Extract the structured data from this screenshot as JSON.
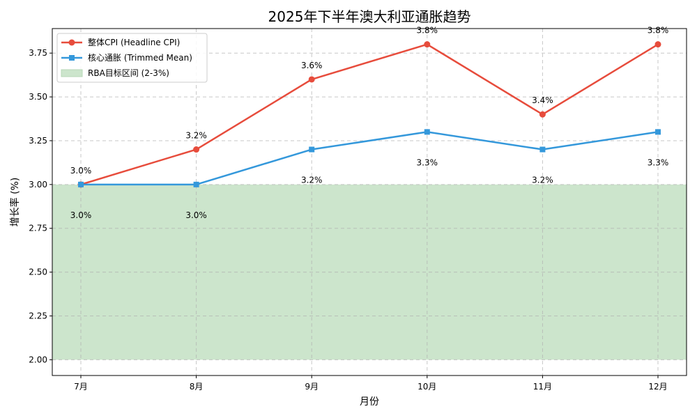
{
  "chart_data": {
    "type": "line",
    "title": "2025年下半年澳大利亚通胀趋势",
    "xlabel": "月份",
    "ylabel": "增长率 (%)",
    "categories": [
      "7月",
      "8月",
      "9月",
      "10月",
      "11月",
      "12月"
    ],
    "ylim": [
      1.91,
      3.89
    ],
    "yticks": [
      2.0,
      2.25,
      2.5,
      2.75,
      3.0,
      3.25,
      3.5,
      3.75
    ],
    "ytick_labels": [
      "2.00",
      "2.25",
      "2.50",
      "2.75",
      "3.00",
      "3.25",
      "3.50",
      "3.75"
    ],
    "grid": true,
    "legend_position": "top-left",
    "series": [
      {
        "name": "整体CPI (Headline CPI)",
        "values": [
          3.0,
          3.2,
          3.6,
          3.8,
          3.4,
          3.8
        ],
        "labels": [
          "3.0%",
          "3.2%",
          "3.6%",
          "3.8%",
          "3.4%",
          "3.8%"
        ],
        "label_position": "above",
        "color": "#e74c3c",
        "marker": "circle"
      },
      {
        "name": "核心通胀 (Trimmed Mean)",
        "values": [
          3.0,
          3.0,
          3.2,
          3.3,
          3.2,
          3.3
        ],
        "labels": [
          "3.0%",
          "3.0%",
          "3.2%",
          "3.3%",
          "3.2%",
          "3.3%"
        ],
        "label_position": "below",
        "color": "#3498db",
        "marker": "square"
      }
    ],
    "bands": [
      {
        "name": "RBA目标区间 (2-3%)",
        "from": 2.0,
        "to": 3.0,
        "color": "#cce5cc"
      }
    ]
  }
}
